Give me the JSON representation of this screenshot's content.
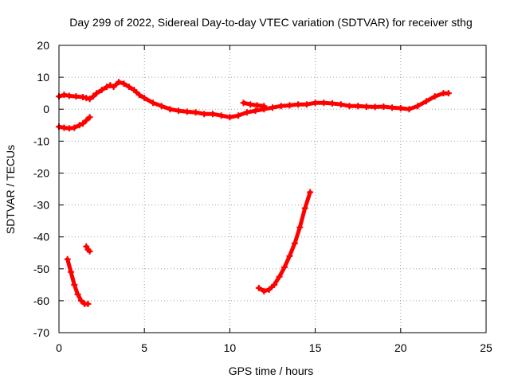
{
  "chart_data": {
    "type": "scatter",
    "title": "Day 299 of 2022, Sidereal Day-to-day VTEC variation (SDTVAR) for receiver sthg",
    "xlabel": "GPS time / hours",
    "ylabel": "SDTVAR / TECUs",
    "xlim": [
      0,
      25
    ],
    "ylim": [
      -70,
      20
    ],
    "xticks": [
      0,
      5,
      10,
      15,
      20,
      25
    ],
    "yticks": [
      -70,
      -60,
      -50,
      -40,
      -30,
      -20,
      -10,
      0,
      10,
      20
    ],
    "grid": true,
    "marker_color": "#ff0000",
    "series": [
      {
        "name": "main-trace",
        "x": [
          0.0,
          0.3,
          0.6,
          1.0,
          1.4,
          1.6,
          1.8,
          2.0,
          2.2,
          2.5,
          2.8,
          3.0,
          3.2,
          3.5,
          3.8,
          4.1,
          4.4,
          4.7,
          5.0,
          5.5,
          6.0,
          6.5,
          7.0,
          7.5,
          8.0,
          8.5,
          9.0,
          9.5,
          10.0,
          10.5,
          11.0,
          11.5,
          12.0,
          12.5,
          13.0,
          13.5,
          14.0,
          14.5,
          15.0,
          15.5,
          16.0,
          16.5,
          17.0,
          17.5,
          18.0,
          18.5,
          19.0,
          19.5,
          20.0,
          20.5,
          21.0,
          21.5,
          22.0,
          22.5,
          22.8
        ],
        "y": [
          4.0,
          4.5,
          4.2,
          4.0,
          3.8,
          3.5,
          3.2,
          4.0,
          5.0,
          6.0,
          7.0,
          7.5,
          7.0,
          8.5,
          8.0,
          7.0,
          6.0,
          4.5,
          3.5,
          2.0,
          1.0,
          0.0,
          -0.5,
          -0.8,
          -1.0,
          -1.5,
          -1.5,
          -2.0,
          -2.5,
          -2.0,
          -1.0,
          -0.5,
          0.0,
          0.5,
          1.0,
          1.2,
          1.5,
          1.5,
          2.0,
          2.0,
          1.8,
          1.5,
          1.0,
          1.0,
          0.8,
          0.7,
          0.8,
          0.5,
          0.3,
          0.0,
          1.0,
          2.5,
          4.0,
          5.0,
          5.0
        ]
      },
      {
        "name": "short-arc-low",
        "x": [
          0.0,
          0.3,
          0.6,
          0.9,
          1.2,
          1.4,
          1.6,
          1.8
        ],
        "y": [
          -5.5,
          -5.8,
          -6.0,
          -5.8,
          -5.0,
          -4.5,
          -3.5,
          -2.5
        ]
      },
      {
        "name": "steep-drop",
        "x": [
          0.5,
          0.7,
          0.9,
          1.1,
          1.3,
          1.5,
          1.7
        ],
        "y": [
          -47,
          -51,
          -55,
          -58,
          -60,
          -61,
          -61
        ]
      },
      {
        "name": "small-fragment",
        "x": [
          1.6,
          1.7,
          1.8
        ],
        "y": [
          -43,
          -44,
          -44.5
        ]
      },
      {
        "name": "rising-arc",
        "x": [
          11.7,
          12.0,
          12.3,
          12.6,
          12.9,
          13.2,
          13.5,
          13.8,
          14.1,
          14.4,
          14.7
        ],
        "y": [
          -56,
          -57,
          -56.5,
          -55,
          -52.5,
          -49.5,
          -46,
          -42,
          -37,
          -31,
          -26
        ]
      },
      {
        "name": "mid-fragment",
        "x": [
          10.8,
          11.2,
          11.6,
          12.0
        ],
        "y": [
          2.0,
          1.5,
          1.2,
          1.0
        ]
      }
    ]
  }
}
